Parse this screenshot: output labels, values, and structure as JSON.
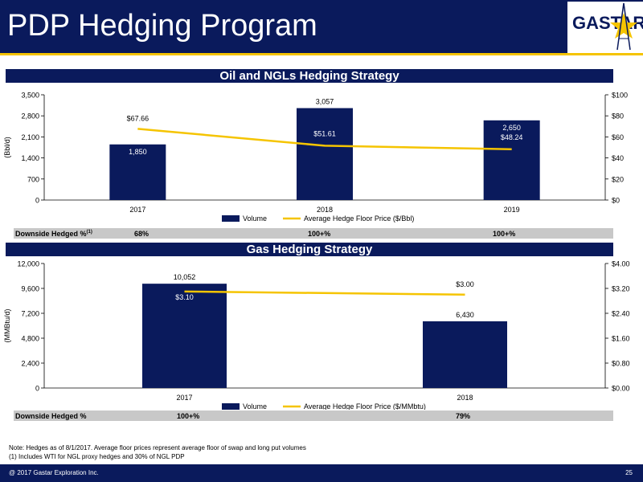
{
  "slide": {
    "title": "PDP Hedging Program",
    "logo_text": "GASTAR",
    "colors": {
      "navy": "#0a1a5c",
      "gold": "#f5c400",
      "gray_row": "#c8c8c8"
    }
  },
  "oil": {
    "banner": "Oil and NGLs Hedging Strategy",
    "hedge_label": "Downside Hedged %",
    "hedge_sup": "(1)",
    "hedge_values": [
      "68%",
      "100+%",
      "100+%"
    ]
  },
  "gas": {
    "banner": "Gas Hedging Strategy",
    "hedge_label": "Downside Hedged %",
    "hedge_values": [
      "100+%",
      "79%"
    ]
  },
  "notes": {
    "line1": "Note: Hedges as of 8/1/2017. Average floor prices represent average floor of swap and long put volumes",
    "line2": "(1)    Includes WTI for NGL proxy hedges and 30% of NGL PDP"
  },
  "footer": {
    "copyright": "@ 2017 Gastar Exploration Inc.",
    "page": "25"
  },
  "chart_data": [
    {
      "type": "bar",
      "categories": [
        "2017",
        "2018",
        "2019"
      ],
      "series": [
        {
          "name": "Volume",
          "axis": "left",
          "type": "bar",
          "values": [
            1850,
            3057,
            2650
          ],
          "labels": [
            "1,850",
            "3,057",
            "2,650"
          ],
          "color": "#0a1a5c"
        },
        {
          "name": "Average Hedge Floor Price ($/Bbl)",
          "axis": "right",
          "type": "line",
          "values": [
            67.66,
            51.61,
            48.24
          ],
          "labels": [
            "$67.66",
            "$51.61",
            "$48.24"
          ],
          "color": "#f5c400"
        }
      ],
      "ylabel": "(Bbl/d)",
      "ylim": [
        0,
        3500
      ],
      "y_ticks": [
        "0",
        "700",
        "1,400",
        "2,100",
        "2,800",
        "3,500"
      ],
      "y2lim": [
        0,
        100
      ],
      "y2_ticks": [
        "$0",
        "$20",
        "$40",
        "$60",
        "$80",
        "$100"
      ],
      "legend_position": "bottom"
    },
    {
      "type": "bar",
      "categories": [
        "2017",
        "2018"
      ],
      "series": [
        {
          "name": "Volume",
          "axis": "left",
          "type": "bar",
          "values": [
            10052,
            6430
          ],
          "labels": [
            "10,052",
            "6,430"
          ],
          "color": "#0a1a5c"
        },
        {
          "name": "Average Hedge Floor Price ($/MMbtu)",
          "axis": "right",
          "type": "line",
          "values": [
            3.1,
            3.0
          ],
          "labels": [
            "$3.10",
            "$3.00"
          ],
          "color": "#f5c400"
        }
      ],
      "ylabel": "(MMBtu/d)",
      "ylim": [
        0,
        12000
      ],
      "y_ticks": [
        "0",
        "2,400",
        "4,800",
        "7,200",
        "9,600",
        "12,000"
      ],
      "y2lim": [
        0,
        4
      ],
      "y2_ticks": [
        "$0.00",
        "$0.80",
        "$1.60",
        "$2.40",
        "$3.20",
        "$4.00"
      ],
      "legend_position": "bottom"
    }
  ]
}
